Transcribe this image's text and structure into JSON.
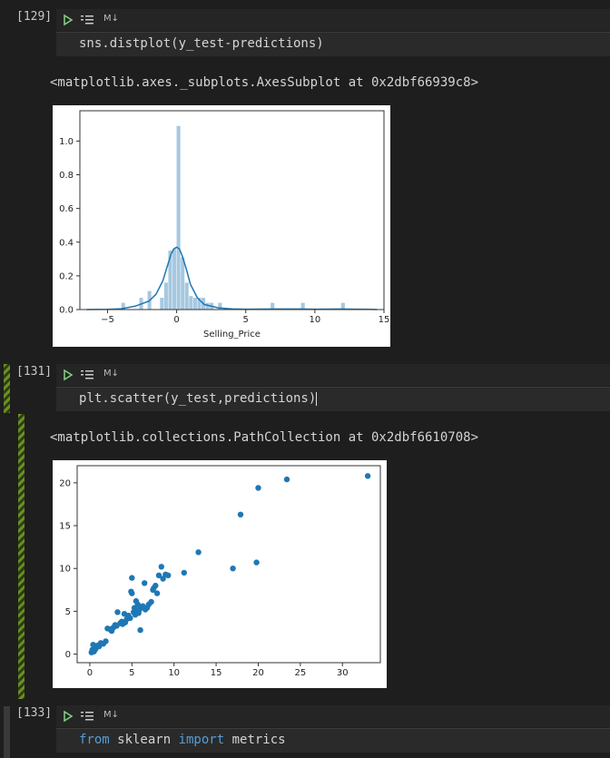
{
  "cells": [
    {
      "exec_count": "[129]",
      "language": "M↓",
      "code": "sns.distplot(y_test-predictions)",
      "output_text": "<matplotlib.axes._subplots.AxesSubplot at 0x2dbf66939c8>"
    },
    {
      "exec_count": "[131]",
      "language": "M↓",
      "code": "plt.scatter(y_test,predictions)",
      "output_text": "<matplotlib.collections.PathCollection at 0x2dbf6610708>"
    },
    {
      "exec_count": "[133]",
      "language": "M↓",
      "code_parts": [
        "from",
        " sklearn ",
        "import",
        " metrics"
      ]
    }
  ],
  "colors": {
    "accent_blue": "#1f77b4",
    "hist_fill": "#a6c8e0",
    "run_icon": "#89d185",
    "keyword": "#569cd6"
  },
  "chart_data": [
    {
      "type": "bar",
      "subtype": "histogram-with-kde",
      "title": "",
      "xlabel": "Selling_Price",
      "ylabel": "",
      "xlim": [
        -7,
        15
      ],
      "ylim": [
        0,
        1.18
      ],
      "xticks": [
        "−5",
        "0",
        "5",
        "10",
        "15"
      ],
      "yticks": [
        "0.0",
        "0.2",
        "0.4",
        "0.6",
        "0.8",
        "1.0"
      ],
      "bins": [
        {
          "x0": -4.0,
          "x1": -3.7,
          "density": 0.04
        },
        {
          "x0": -2.7,
          "x1": -2.4,
          "density": 0.07
        },
        {
          "x0": -2.1,
          "x1": -1.8,
          "density": 0.11
        },
        {
          "x0": -1.2,
          "x1": -0.9,
          "density": 0.07
        },
        {
          "x0": -0.9,
          "x1": -0.6,
          "density": 0.16
        },
        {
          "x0": -0.6,
          "x1": -0.3,
          "density": 0.35
        },
        {
          "x0": -0.3,
          "x1": 0.0,
          "density": 0.36
        },
        {
          "x0": 0.0,
          "x1": 0.3,
          "density": 1.09
        },
        {
          "x0": 0.3,
          "x1": 0.6,
          "density": 0.31
        },
        {
          "x0": 0.6,
          "x1": 0.9,
          "density": 0.16
        },
        {
          "x0": 0.9,
          "x1": 1.2,
          "density": 0.08
        },
        {
          "x0": 1.2,
          "x1": 1.5,
          "density": 0.07
        },
        {
          "x0": 1.5,
          "x1": 1.8,
          "density": 0.07
        },
        {
          "x0": 1.8,
          "x1": 2.1,
          "density": 0.07
        },
        {
          "x0": 2.1,
          "x1": 2.4,
          "density": 0.04
        },
        {
          "x0": 2.4,
          "x1": 2.7,
          "density": 0.04
        },
        {
          "x0": 3.0,
          "x1": 3.3,
          "density": 0.04
        },
        {
          "x0": 6.8,
          "x1": 7.1,
          "density": 0.04
        },
        {
          "x0": 9.0,
          "x1": 9.3,
          "density": 0.04
        },
        {
          "x0": 11.9,
          "x1": 12.2,
          "density": 0.04
        }
      ],
      "kde": [
        [
          -6.5,
          0.0
        ],
        [
          -5,
          0.001
        ],
        [
          -4,
          0.005
        ],
        [
          -3,
          0.02
        ],
        [
          -2,
          0.05
        ],
        [
          -1.5,
          0.09
        ],
        [
          -1,
          0.17
        ],
        [
          -0.7,
          0.25
        ],
        [
          -0.4,
          0.33
        ],
        [
          -0.2,
          0.36
        ],
        [
          0,
          0.37
        ],
        [
          0.2,
          0.36
        ],
        [
          0.4,
          0.32
        ],
        [
          0.7,
          0.24
        ],
        [
          1,
          0.15
        ],
        [
          1.5,
          0.07
        ],
        [
          2,
          0.03
        ],
        [
          3,
          0.01
        ],
        [
          4,
          0.004
        ],
        [
          5,
          0.002
        ],
        [
          7,
          0.003
        ],
        [
          9,
          0.003
        ],
        [
          10,
          0.002
        ],
        [
          12,
          0.003
        ],
        [
          14,
          0.001
        ],
        [
          14.5,
          0.0
        ]
      ]
    },
    {
      "type": "scatter",
      "title": "",
      "xlabel": "",
      "ylabel": "",
      "xlim": [
        -1.5,
        34.5
      ],
      "ylim": [
        -1,
        22
      ],
      "xticks": [
        "0",
        "5",
        "10",
        "15",
        "20",
        "25",
        "30"
      ],
      "yticks": [
        "0",
        "5",
        "10",
        "15",
        "20"
      ],
      "points": [
        [
          0.2,
          0.2
        ],
        [
          0.3,
          0.5
        ],
        [
          0.4,
          1.1
        ],
        [
          0.5,
          0.3
        ],
        [
          0.7,
          0.6
        ],
        [
          0.9,
          1.0
        ],
        [
          1.1,
          0.9
        ],
        [
          1.3,
          1.3
        ],
        [
          1.6,
          1.2
        ],
        [
          1.9,
          1.5
        ],
        [
          2.1,
          3.0
        ],
        [
          2.4,
          2.9
        ],
        [
          2.6,
          2.7
        ],
        [
          2.8,
          3.1
        ],
        [
          3.0,
          3.4
        ],
        [
          3.2,
          3.3
        ],
        [
          3.3,
          4.9
        ],
        [
          3.6,
          3.6
        ],
        [
          3.8,
          3.8
        ],
        [
          3.9,
          3.5
        ],
        [
          4.1,
          4.7
        ],
        [
          4.2,
          3.7
        ],
        [
          4.4,
          4.1
        ],
        [
          4.6,
          4.5
        ],
        [
          4.8,
          4.2
        ],
        [
          4.9,
          7.3
        ],
        [
          5.0,
          8.9
        ],
        [
          5.0,
          7.1
        ],
        [
          5.2,
          4.9
        ],
        [
          5.3,
          5.4
        ],
        [
          5.4,
          4.6
        ],
        [
          5.5,
          6.2
        ],
        [
          5.6,
          5.0
        ],
        [
          5.7,
          5.8
        ],
        [
          5.8,
          4.8
        ],
        [
          5.9,
          5.2
        ],
        [
          6.0,
          2.8
        ],
        [
          6.1,
          5.5
        ],
        [
          6.3,
          5.6
        ],
        [
          6.5,
          8.3
        ],
        [
          6.6,
          5.2
        ],
        [
          6.8,
          5.4
        ],
        [
          7.0,
          5.8
        ],
        [
          7.3,
          6.1
        ],
        [
          7.5,
          7.5
        ],
        [
          7.6,
          7.7
        ],
        [
          7.8,
          8.0
        ],
        [
          8.0,
          7.1
        ],
        [
          8.2,
          9.2
        ],
        [
          8.5,
          10.2
        ],
        [
          8.7,
          8.8
        ],
        [
          9.0,
          9.3
        ],
        [
          9.3,
          9.2
        ],
        [
          11.2,
          9.5
        ],
        [
          12.9,
          11.9
        ],
        [
          17.0,
          10.0
        ],
        [
          17.9,
          16.3
        ],
        [
          19.8,
          10.7
        ],
        [
          20.0,
          19.4
        ],
        [
          23.4,
          20.4
        ],
        [
          33.0,
          20.8
        ]
      ]
    }
  ]
}
